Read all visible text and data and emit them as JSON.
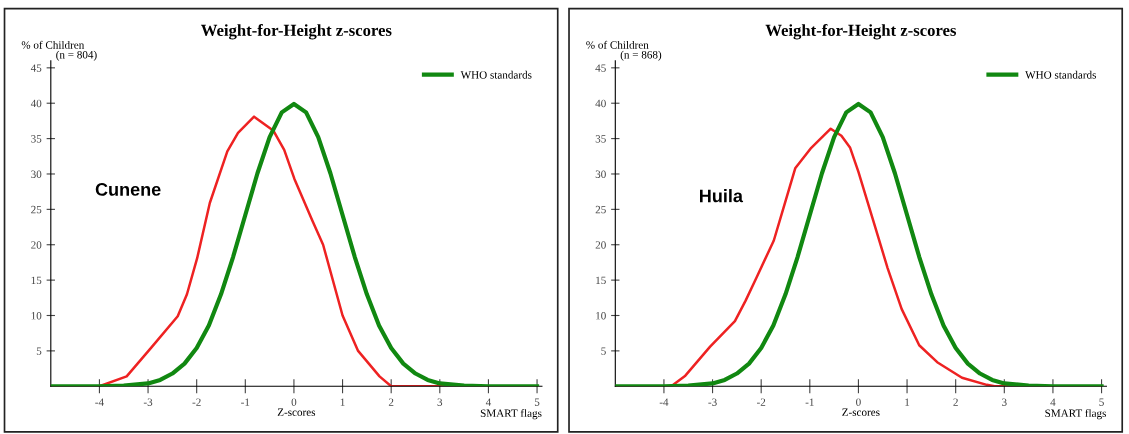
{
  "chart_data": [
    {
      "type": "line",
      "title": "Weight-for-Height z-scores",
      "subtitle": "(n = 804)",
      "ylabel": "% of Children",
      "xlabel": "Z-scores",
      "annotations": [
        "SMART flags",
        "Cunene"
      ],
      "xlim": [
        -5,
        5.1
      ],
      "ylim": [
        0,
        46
      ],
      "xticks": [
        -4,
        -3,
        -2,
        -1,
        0,
        1,
        2,
        3,
        4,
        5
      ],
      "yticks": [
        5,
        10,
        15,
        20,
        25,
        30,
        35,
        40,
        45
      ],
      "grid": false,
      "legend": "top right",
      "marker": "none",
      "line_style": "solid",
      "series": [
        {
          "color": "#ee2222",
          "x": [
            -5,
            -4,
            -3.44,
            -2.93,
            -2.39,
            -2.2,
            -1.99,
            -1.73,
            -1.37,
            -1.15,
            -0.82,
            -0.42,
            -0.2,
            0.01,
            0.38,
            0.6,
            1.0,
            1.32,
            1.76,
            2.0,
            2.5,
            5
          ],
          "values": [
            0,
            0,
            1.4,
            5.5,
            9.9,
            13,
            18.1,
            25.9,
            33.2,
            35.8,
            38.1,
            36.1,
            33.4,
            29.3,
            23.4,
            20,
            10,
            5,
            1.4,
            0,
            0,
            0
          ]
        },
        {
          "name": "WHO standards",
          "color": "#118811",
          "x": [
            -5,
            -4,
            -3.5,
            -3,
            -2.75,
            -2.5,
            -2.25,
            -2,
            -1.75,
            -1.5,
            -1.25,
            -1,
            -0.75,
            -0.5,
            -0.25,
            0,
            0.25,
            0.5,
            0.75,
            1,
            1.25,
            1.5,
            1.75,
            2,
            2.25,
            2.5,
            2.75,
            3,
            3.5,
            4,
            5
          ],
          "values": [
            0,
            0,
            0.1,
            0.4,
            0.9,
            1.8,
            3.2,
            5.4,
            8.6,
            13.0,
            18.3,
            24.2,
            30.1,
            35.2,
            38.7,
            39.9,
            38.7,
            35.2,
            30.1,
            24.2,
            18.3,
            13.0,
            8.6,
            5.4,
            3.2,
            1.8,
            0.9,
            0.4,
            0.1,
            0,
            0
          ]
        }
      ]
    },
    {
      "type": "line",
      "title": "Weight-for-Height z-scores",
      "subtitle": "(n = 868)",
      "ylabel": "% of Children",
      "xlabel": "Z-scores",
      "annotations": [
        "SMART flags",
        "Huila"
      ],
      "xlim": [
        -5,
        5.1
      ],
      "ylim": [
        0,
        46
      ],
      "xticks": [
        -4,
        -3,
        -2,
        -1,
        0,
        1,
        2,
        3,
        4,
        5
      ],
      "yticks": [
        5,
        10,
        15,
        20,
        25,
        30,
        35,
        40,
        45
      ],
      "grid": false,
      "legend": "top right",
      "marker": "none",
      "line_style": "solid",
      "series": [
        {
          "color": "#ee2222",
          "x": [
            -5,
            -3.85,
            -3.56,
            -3.05,
            -2.54,
            -2.32,
            -2.1,
            -1.74,
            -1.55,
            -1.3,
            -0.97,
            -0.57,
            -0.35,
            -0.17,
            0,
            0.3,
            0.6,
            0.89,
            1.25,
            1.62,
            2.13,
            2.64,
            2.8,
            5
          ],
          "values": [
            0,
            0,
            1.5,
            5.6,
            9.2,
            12.1,
            15.3,
            20.6,
            25,
            30.8,
            33.7,
            36.4,
            35.4,
            33.7,
            30.3,
            23.5,
            16.7,
            10.9,
            5.8,
            3.4,
            1.2,
            0.2,
            0,
            0
          ]
        },
        {
          "name": "WHO standards",
          "color": "#118811",
          "x": [
            -5,
            -4,
            -3.5,
            -3,
            -2.75,
            -2.5,
            -2.25,
            -2,
            -1.75,
            -1.5,
            -1.25,
            -1,
            -0.75,
            -0.5,
            -0.25,
            0,
            0.25,
            0.5,
            0.75,
            1,
            1.25,
            1.5,
            1.75,
            2,
            2.25,
            2.5,
            2.75,
            3,
            3.5,
            4,
            5
          ],
          "values": [
            0,
            0,
            0.1,
            0.4,
            0.9,
            1.8,
            3.2,
            5.4,
            8.6,
            13.0,
            18.3,
            24.2,
            30.1,
            35.2,
            38.7,
            39.9,
            38.7,
            35.2,
            30.1,
            24.2,
            18.3,
            13.0,
            8.6,
            5.4,
            3.2,
            1.8,
            0.9,
            0.4,
            0.1,
            0,
            0
          ]
        }
      ]
    }
  ]
}
